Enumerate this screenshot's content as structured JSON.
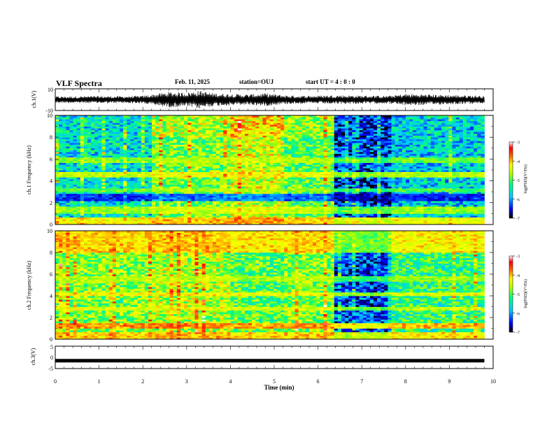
{
  "header": {
    "title": "VLF Spectra",
    "date": "Feb. 11, 2025",
    "station": "station=OUJ",
    "start_ut": "start UT =  4 : 0  : 0"
  },
  "chart_data": [
    {
      "id": "ch1_waveform",
      "type": "line",
      "ylabel": "ch.1(V)",
      "ylim": [
        -10,
        10
      ],
      "y_ticks": [
        "10",
        "-10"
      ],
      "xlim": [
        0,
        10
      ],
      "data_extent_min": 9.8,
      "description_of_values": "broadband waveform, amplitude envelope vs time",
      "x": [
        0,
        0.5,
        1,
        1.5,
        2,
        2.3,
        2.6,
        3,
        3.3,
        3.6,
        4,
        4.4,
        4.8,
        5.2,
        5.6,
        6,
        6.4,
        7,
        7.6,
        8,
        8.4,
        8.8,
        9.2,
        9.6,
        9.8
      ],
      "amplitude": [
        2.5,
        2.6,
        2.8,
        2.7,
        3,
        4.5,
        6,
        5.5,
        7,
        5,
        4.5,
        4,
        5,
        3.5,
        3,
        3.2,
        3.5,
        3.2,
        3,
        4.5,
        4.2,
        3.8,
        3.5,
        3.2,
        3
      ]
    },
    {
      "id": "ch1_spectrogram",
      "type": "heatmap",
      "ylabel": "ch.1 Frequency (kHz)",
      "ylim": [
        0,
        10
      ],
      "y_ticks": [
        0,
        2,
        4,
        6,
        8,
        10
      ],
      "xlim": [
        0,
        10
      ],
      "colorbar": {
        "label": "log(PSD)(V²/Hz)",
        "range": [
          -7,
          -3
        ],
        "ticks": [
          "-3",
          "-4",
          "-5",
          "-6",
          "-7"
        ]
      },
      "time_segments": [
        {
          "t": [
            0,
            2.2
          ],
          "base_log_psd": -5.6
        },
        {
          "t": [
            2.2,
            4.0
          ],
          "base_log_psd": -4.9
        },
        {
          "t": [
            4.0,
            5.2
          ],
          "base_log_psd": -4.5
        },
        {
          "t": [
            5.2,
            6.35
          ],
          "base_log_psd": -5.0
        },
        {
          "t": [
            6.35,
            7.65
          ],
          "base_log_psd": -6.4
        },
        {
          "t": [
            7.65,
            9.8
          ],
          "base_log_psd": -5.7
        }
      ],
      "freq_bands": [
        {
          "f": [
            0,
            0.6
          ],
          "log_psd": -3.6
        },
        {
          "f": [
            1.0,
            1.6
          ],
          "log_psd": -4.3
        },
        {
          "f": [
            2.2,
            2.8
          ],
          "log_psd": -6.8
        },
        {
          "f": [
            3.0,
            3.4
          ],
          "log_psd": -4.6
        },
        {
          "f": [
            4.4,
            4.8
          ],
          "log_psd": -4.0
        },
        {
          "f": [
            5.6,
            6.2
          ],
          "log_psd": -4.4
        }
      ]
    },
    {
      "id": "ch2_spectrogram",
      "type": "heatmap",
      "ylabel": "ch.2 Frequency (kHz)",
      "ylim": [
        0,
        10
      ],
      "y_ticks": [
        0,
        2,
        4,
        6,
        8,
        10
      ],
      "xlim": [
        0,
        10
      ],
      "colorbar": {
        "label": "log(PSD)(V²/Hz)",
        "range": [
          -7,
          -3
        ],
        "ticks": [
          "-3",
          "-4",
          "-5",
          "-6",
          "-7"
        ]
      },
      "time_segments": [
        {
          "t": [
            0,
            2.2
          ],
          "base_log_psd": -4.8
        },
        {
          "t": [
            2.2,
            4.0
          ],
          "base_log_psd": -4.6
        },
        {
          "t": [
            4.0,
            5.2
          ],
          "base_log_psd": -5.0
        },
        {
          "t": [
            5.2,
            6.35
          ],
          "base_log_psd": -4.8
        },
        {
          "t": [
            6.35,
            7.65
          ],
          "base_log_psd": -6.3
        },
        {
          "t": [
            7.65,
            9.8
          ],
          "base_log_psd": -5.2
        }
      ],
      "freq_bands": [
        {
          "f": [
            0,
            0.6
          ],
          "log_psd": -3.7
        },
        {
          "f": [
            1.0,
            1.5
          ],
          "log_psd": -3.4
        },
        {
          "f": [
            2.6,
            3.0
          ],
          "log_psd": -4.2
        },
        {
          "f": [
            4.0,
            4.4
          ],
          "log_psd": -4.0
        },
        {
          "f": [
            5.4,
            5.8
          ],
          "log_psd": -4.5
        },
        {
          "f": [
            8.0,
            10.0
          ],
          "log_psd": -4.2
        }
      ]
    },
    {
      "id": "ch3_level",
      "type": "line",
      "ylabel": "ch.3(V)",
      "ylim": [
        -5,
        5
      ],
      "y_ticks": [
        "5",
        "0",
        "-5"
      ],
      "xlim": [
        0,
        10
      ],
      "x": [
        0,
        9.8
      ],
      "y": [
        -1.5,
        -1.5
      ]
    }
  ],
  "xaxis": {
    "label": "Time (min)",
    "ticks": [
      "0",
      "1",
      "2",
      "3",
      "4",
      "5",
      "6",
      "7",
      "8",
      "9",
      "10"
    ]
  }
}
